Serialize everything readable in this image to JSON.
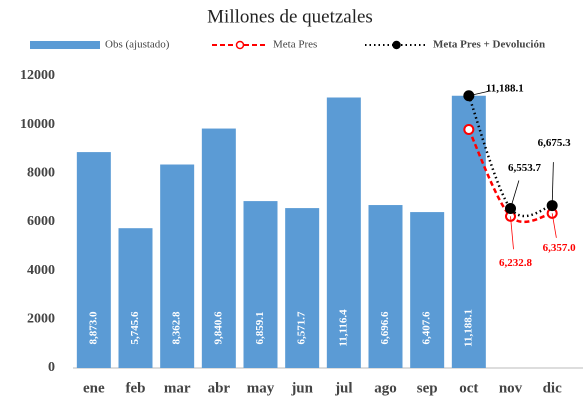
{
  "chart_data": {
    "type": "bar",
    "title": "Millones de quetzales",
    "categories": [
      "ene",
      "feb",
      "mar",
      "abr",
      "may",
      "jun",
      "jul",
      "ago",
      "sep",
      "oct",
      "nov",
      "dic"
    ],
    "series": [
      {
        "name": "Obs (ajustado)",
        "type": "bar",
        "color": "#5b9bd5",
        "values": [
          8873.0,
          5745.6,
          8362.8,
          9840.6,
          6859.1,
          6571.7,
          11116.4,
          6696.6,
          6407.6,
          11188.1,
          null,
          null
        ],
        "value_labels": [
          "8,873.0",
          "5,745.6",
          "8,362.8",
          "9,840.6",
          "6,859.1",
          "6,571.7",
          "11,116.4",
          "6,696.6",
          "6,407.6",
          "11,188.1",
          null,
          null
        ],
        "label_color": "#ffffff"
      },
      {
        "name": "Meta Pres",
        "type": "line",
        "color": "#ff0000",
        "dash": "dashed",
        "marker_fill": "#ffffff",
        "values": [
          null,
          null,
          null,
          null,
          null,
          null,
          null,
          null,
          null,
          9800,
          6232.8,
          6357.0
        ],
        "value_labels": [
          null,
          null,
          null,
          null,
          null,
          null,
          null,
          null,
          null,
          null,
          "6,232.8",
          "6,357.0"
        ],
        "label_color": "#ff0000"
      },
      {
        "name": "Meta Pres + Devolución",
        "type": "line",
        "color": "#000000",
        "dash": "dotted",
        "marker_fill": "#000000",
        "values": [
          null,
          null,
          null,
          null,
          null,
          null,
          null,
          null,
          null,
          11188.1,
          6553.7,
          6675.3
        ],
        "value_labels": [
          null,
          null,
          null,
          null,
          null,
          null,
          null,
          null,
          null,
          "11,188.1",
          "6,553.7",
          "6,675.3"
        ],
        "label_color": "#000000"
      }
    ],
    "ylim": [
      0,
      12000
    ],
    "yticks": [
      0,
      2000,
      4000,
      6000,
      8000,
      10000,
      12000
    ],
    "grid": false
  }
}
